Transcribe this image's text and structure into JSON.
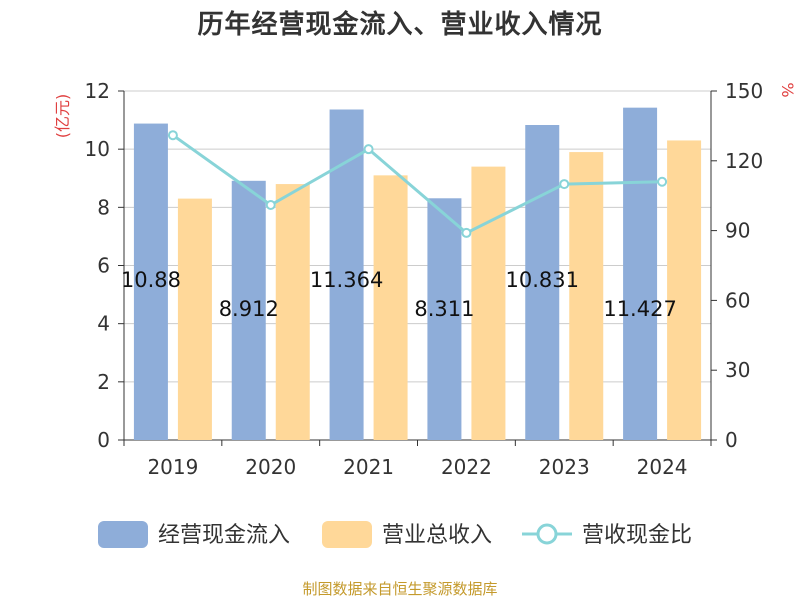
{
  "colors": {
    "cash_inflow": "#8eadd9",
    "revenue": "#ffd899",
    "ratio": "#88d4d8",
    "axis_label_red": "#e04040",
    "source_text": "#c49a2c"
  },
  "chart_data": {
    "type": "bar",
    "title": "历年经营现金流入、营业收入情况",
    "categories": [
      "2019",
      "2020",
      "2021",
      "2022",
      "2023",
      "2024"
    ],
    "series": [
      {
        "name": "经营现金流入",
        "kind": "bar",
        "axis": "left",
        "values": [
          10.88,
          8.912,
          11.364,
          8.311,
          10.831,
          11.427
        ],
        "data_labels": [
          "10.88",
          "8.912",
          "11.364",
          "8.311",
          "10.831",
          "11.427"
        ]
      },
      {
        "name": "营业总收入",
        "kind": "bar",
        "axis": "left",
        "values": [
          8.3,
          8.8,
          9.1,
          9.4,
          9.9,
          10.3
        ]
      },
      {
        "name": "营收现金比",
        "kind": "line",
        "axis": "right",
        "values": [
          131,
          101,
          125,
          89,
          110,
          111
        ]
      }
    ],
    "y_left": {
      "label": "(亿元)",
      "min": 0,
      "max": 12,
      "ticks": [
        "0",
        "2",
        "4",
        "6",
        "8",
        "10",
        "12"
      ]
    },
    "y_right": {
      "label": "%",
      "min": 0,
      "max": 150,
      "ticks": [
        "0",
        "30",
        "60",
        "90",
        "120",
        "150"
      ]
    },
    "grid": true,
    "legend_position": "bottom"
  },
  "source_text": "制图数据来自恒生聚源数据库"
}
